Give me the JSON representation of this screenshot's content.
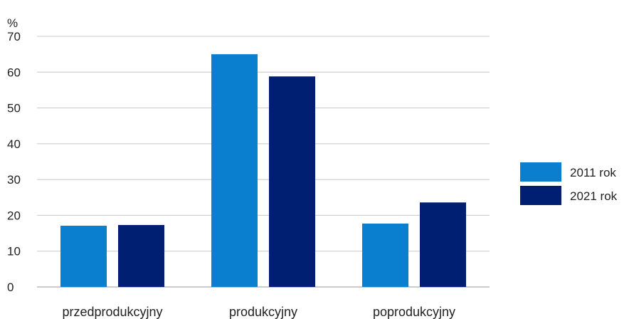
{
  "chart_data": {
    "type": "bar",
    "unit_label": "%",
    "categories": [
      "przedprodukcyjny",
      "produkcyjny",
      "poprodukcyjny"
    ],
    "series": [
      {
        "name": "2011 rok",
        "color": "#0a7fcf",
        "values": [
          17.1,
          65.0,
          17.7
        ]
      },
      {
        "name": "2021 rok",
        "color": "#001e72",
        "values": [
          17.3,
          58.8,
          23.6
        ]
      }
    ],
    "ylim": [
      0,
      70
    ],
    "yticks": [
      0,
      10,
      20,
      30,
      40,
      50,
      60,
      70
    ],
    "grid": true,
    "legend_position": "right"
  }
}
